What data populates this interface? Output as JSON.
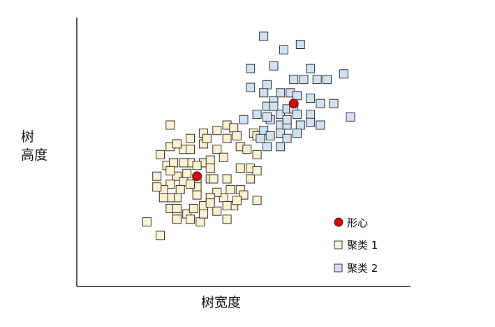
{
  "chart_data": {
    "type": "scatter",
    "ylabel_lines": [
      "树",
      "高度"
    ],
    "xlabel": "树宽度",
    "legend": {
      "centroid": "形心",
      "cluster1": "聚类 1",
      "cluster2": "聚类 2"
    },
    "colors": {
      "cluster1_fill": "#fdf1cf",
      "cluster2_fill": "#cfe2f3",
      "centroid_fill": "#e00000",
      "stroke": "#333333"
    },
    "xlim": [
      0,
      100
    ],
    "ylim": [
      0,
      100
    ],
    "centroids": [
      {
        "x": 36,
        "y": 41
      },
      {
        "x": 65,
        "y": 68
      }
    ],
    "cluster1": [
      {
        "x": 28,
        "y": 60
      },
      {
        "x": 28,
        "y": 52
      },
      {
        "x": 25,
        "y": 49
      },
      {
        "x": 27,
        "y": 45
      },
      {
        "x": 29,
        "y": 46
      },
      {
        "x": 32,
        "y": 51
      },
      {
        "x": 34,
        "y": 55
      },
      {
        "x": 34,
        "y": 51
      },
      {
        "x": 30,
        "y": 41
      },
      {
        "x": 32,
        "y": 39
      },
      {
        "x": 34,
        "y": 46
      },
      {
        "x": 38,
        "y": 57
      },
      {
        "x": 38,
        "y": 53
      },
      {
        "x": 38,
        "y": 46
      },
      {
        "x": 39,
        "y": 55
      },
      {
        "x": 40,
        "y": 47
      },
      {
        "x": 40,
        "y": 44
      },
      {
        "x": 40,
        "y": 40
      },
      {
        "x": 42,
        "y": 58
      },
      {
        "x": 42,
        "y": 51
      },
      {
        "x": 44,
        "y": 48
      },
      {
        "x": 45,
        "y": 60
      },
      {
        "x": 45,
        "y": 55
      },
      {
        "x": 47,
        "y": 59
      },
      {
        "x": 48,
        "y": 56
      },
      {
        "x": 49,
        "y": 52
      },
      {
        "x": 49,
        "y": 44
      },
      {
        "x": 49,
        "y": 36
      },
      {
        "x": 50,
        "y": 34
      },
      {
        "x": 47,
        "y": 30
      },
      {
        "x": 44,
        "y": 33
      },
      {
        "x": 42,
        "y": 35
      },
      {
        "x": 41,
        "y": 40
      },
      {
        "x": 36,
        "y": 45
      },
      {
        "x": 36,
        "y": 40
      },
      {
        "x": 36,
        "y": 37
      },
      {
        "x": 36,
        "y": 34
      },
      {
        "x": 34,
        "y": 38
      },
      {
        "x": 33,
        "y": 42
      },
      {
        "x": 31,
        "y": 36
      },
      {
        "x": 30,
        "y": 33
      },
      {
        "x": 28,
        "y": 38
      },
      {
        "x": 28,
        "y": 33
      },
      {
        "x": 26,
        "y": 36
      },
      {
        "x": 26,
        "y": 33
      },
      {
        "x": 24,
        "y": 41
      },
      {
        "x": 24,
        "y": 37
      },
      {
        "x": 28,
        "y": 29
      },
      {
        "x": 30,
        "y": 26
      },
      {
        "x": 33,
        "y": 27
      },
      {
        "x": 35,
        "y": 29
      },
      {
        "x": 34,
        "y": 25
      },
      {
        "x": 37,
        "y": 24
      },
      {
        "x": 38,
        "y": 30
      },
      {
        "x": 40,
        "y": 33
      },
      {
        "x": 42,
        "y": 28
      },
      {
        "x": 45,
        "y": 25
      },
      {
        "x": 45,
        "y": 40
      },
      {
        "x": 46,
        "y": 36
      },
      {
        "x": 52,
        "y": 44
      },
      {
        "x": 52,
        "y": 40
      },
      {
        "x": 51,
        "y": 51
      },
      {
        "x": 53,
        "y": 57
      },
      {
        "x": 54,
        "y": 56
      },
      {
        "x": 54,
        "y": 49
      },
      {
        "x": 54,
        "y": 43
      },
      {
        "x": 54,
        "y": 32
      },
      {
        "x": 21,
        "y": 24
      },
      {
        "x": 25,
        "y": 19
      },
      {
        "x": 30,
        "y": 25
      },
      {
        "x": 38,
        "y": 27
      },
      {
        "x": 40,
        "y": 31
      },
      {
        "x": 45,
        "y": 30
      },
      {
        "x": 48,
        "y": 32
      },
      {
        "x": 30,
        "y": 53
      },
      {
        "x": 32,
        "y": 46
      },
      {
        "x": 30,
        "y": 29
      },
      {
        "x": 28,
        "y": 43
      }
    ],
    "cluster2": [
      {
        "x": 56,
        "y": 93
      },
      {
        "x": 62,
        "y": 88
      },
      {
        "x": 67,
        "y": 90
      },
      {
        "x": 52,
        "y": 81
      },
      {
        "x": 59,
        "y": 82
      },
      {
        "x": 65,
        "y": 77
      },
      {
        "x": 70,
        "y": 81
      },
      {
        "x": 72,
        "y": 77
      },
      {
        "x": 80,
        "y": 79
      },
      {
        "x": 52,
        "y": 74
      },
      {
        "x": 57,
        "y": 75
      },
      {
        "x": 64,
        "y": 72
      },
      {
        "x": 66,
        "y": 71
      },
      {
        "x": 68,
        "y": 77
      },
      {
        "x": 75,
        "y": 77
      },
      {
        "x": 57,
        "y": 67
      },
      {
        "x": 59,
        "y": 69
      },
      {
        "x": 61,
        "y": 64
      },
      {
        "x": 63,
        "y": 66
      },
      {
        "x": 65,
        "y": 66
      },
      {
        "x": 66,
        "y": 64
      },
      {
        "x": 70,
        "y": 64
      },
      {
        "x": 70,
        "y": 70
      },
      {
        "x": 73,
        "y": 68
      },
      {
        "x": 77,
        "y": 68
      },
      {
        "x": 50,
        "y": 62
      },
      {
        "x": 54,
        "y": 64
      },
      {
        "x": 58,
        "y": 62
      },
      {
        "x": 61,
        "y": 60
      },
      {
        "x": 56,
        "y": 58
      },
      {
        "x": 58,
        "y": 56
      },
      {
        "x": 61,
        "y": 57
      },
      {
        "x": 63,
        "y": 60
      },
      {
        "x": 67,
        "y": 60
      },
      {
        "x": 70,
        "y": 61
      },
      {
        "x": 73,
        "y": 60
      },
      {
        "x": 57,
        "y": 52
      },
      {
        "x": 61,
        "y": 52
      },
      {
        "x": 63,
        "y": 55
      },
      {
        "x": 66,
        "y": 57
      },
      {
        "x": 55,
        "y": 55
      },
      {
        "x": 82,
        "y": 63
      },
      {
        "x": 61,
        "y": 72
      },
      {
        "x": 56,
        "y": 72
      },
      {
        "x": 59,
        "y": 67
      },
      {
        "x": 63,
        "y": 62
      },
      {
        "x": 57,
        "y": 63
      }
    ]
  }
}
